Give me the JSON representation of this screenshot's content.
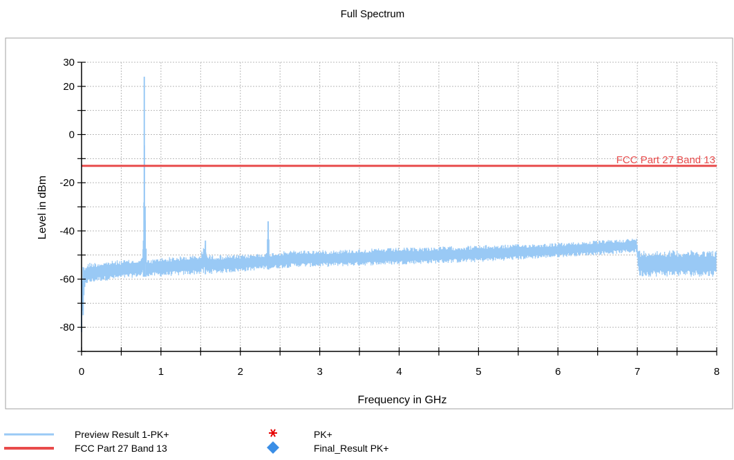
{
  "chart_data": {
    "type": "line",
    "title": "Full Spectrum",
    "xlabel": "Frequency in GHz",
    "ylabel": "Level in dBm",
    "xlim": [
      0,
      8
    ],
    "ylim": [
      -90,
      30
    ],
    "x_ticks": [
      0,
      1,
      2,
      3,
      4,
      5,
      6,
      7,
      8
    ],
    "y_ticks": [
      30,
      20,
      0,
      -20,
      -40,
      -60,
      -80
    ],
    "grid": true,
    "legend_position": "bottom",
    "colors": {
      "trace": "#99c9f5",
      "limit": "#e84b4b",
      "pk_marker": "#e60000",
      "final_marker": "#3a8ee6"
    },
    "series": [
      {
        "name": "Preview Result 1-PK+",
        "x": [
          0.0,
          0.02,
          0.05,
          0.1,
          0.2,
          0.5,
          0.75,
          0.78,
          0.79,
          0.8,
          0.82,
          0.85,
          1.0,
          1.5,
          1.56,
          1.58,
          2.0,
          2.33,
          2.35,
          2.37,
          2.7,
          3.0,
          4.0,
          5.0,
          6.0,
          6.99,
          7.02,
          7.5,
          8.0
        ],
        "upper": [
          -60,
          -55,
          -54,
          -53,
          -53,
          -52,
          -52,
          -44,
          24,
          -30,
          -52,
          -52,
          -51,
          -50,
          -44,
          -50,
          -50,
          -49,
          -36,
          -49,
          -48,
          -48,
          -47,
          -46,
          -45,
          -43,
          -48,
          -48,
          -48
        ],
        "lower": [
          -82,
          -75,
          -62,
          -62,
          -61,
          -60,
          -59,
          -59,
          -59,
          -59,
          -59,
          -59,
          -59,
          -58,
          -58,
          -58,
          -57,
          -56,
          -56,
          -56,
          -55,
          -55,
          -54,
          -53,
          -51,
          -49,
          -59,
          -59,
          -59
        ]
      },
      {
        "name": "FCC Part 27 Band 13",
        "x": [
          0,
          8
        ],
        "values": [
          -13,
          -13
        ]
      },
      {
        "name": "PK+",
        "values": []
      },
      {
        "name": "Final_Result PK+",
        "values": []
      }
    ],
    "annotations": [
      {
        "text": "FCC Part 27 Band 13",
        "x": 8,
        "y": -13
      }
    ]
  }
}
